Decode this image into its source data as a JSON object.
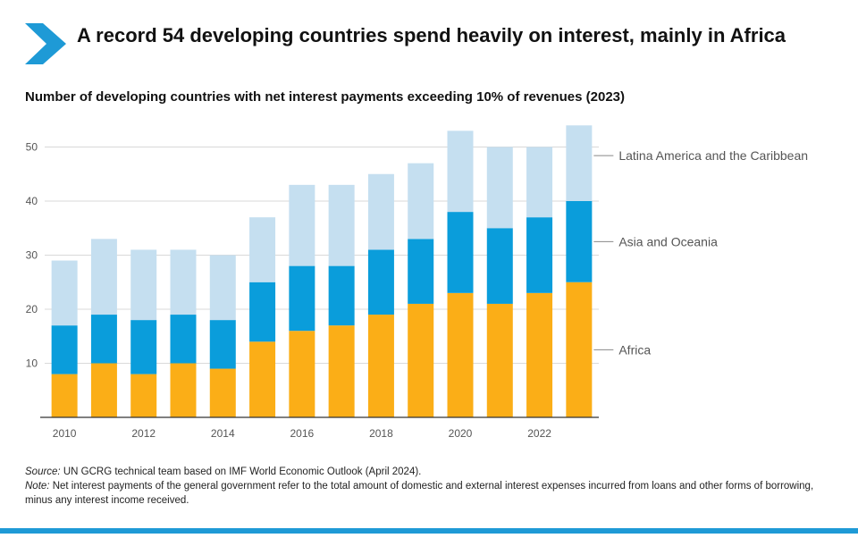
{
  "header": {
    "title": "A record 54 developing countries spend heavily on interest, mainly in Africa",
    "subtitle": "Number of developing countries with net interest payments exceeding 10% of revenues (2023)"
  },
  "footnote": {
    "source_label": "Source:",
    "source_text": "UN GCRG technical team based on IMF World Economic Outlook (April 2024).",
    "note_label": "Note:",
    "note_text": "Net interest payments of the general government refer to the total amount of domestic and external interest expenses incurred from loans and other forms of borrowing, minus any interest income received."
  },
  "colors": {
    "brand": "#1e9ad6",
    "africa": "#fbae17",
    "asia": "#0a9ddb",
    "latam": "#c5dff0",
    "grid": "#d9d9d9",
    "axis": "#333333",
    "label": "#555555"
  },
  "chart_data": {
    "type": "bar",
    "stacked": true,
    "title": "Number of developing countries with net interest payments exceeding 10% of revenues (2023)",
    "xlabel": "",
    "ylabel": "",
    "ylim": [
      0,
      55
    ],
    "yticks": [
      10,
      20,
      30,
      40,
      50
    ],
    "categories": [
      "2010",
      "2011",
      "2012",
      "2013",
      "2014",
      "2015",
      "2016",
      "2017",
      "2018",
      "2019",
      "2020",
      "2021",
      "2022",
      "2023"
    ],
    "xtick_labels": [
      "2010",
      "2012",
      "2014",
      "2016",
      "2018",
      "2020",
      "2022"
    ],
    "series": [
      {
        "name": "Africa",
        "color": "#fbae17",
        "values": [
          8,
          10,
          8,
          10,
          9,
          14,
          16,
          17,
          19,
          21,
          23,
          21,
          23,
          25
        ]
      },
      {
        "name": "Asia and Oceania",
        "color": "#0a9ddb",
        "values": [
          9,
          9,
          10,
          9,
          9,
          11,
          12,
          11,
          12,
          12,
          15,
          14,
          14,
          15
        ]
      },
      {
        "name": "Latina America and the Caribbean",
        "color": "#c5dff0",
        "values": [
          12,
          14,
          13,
          12,
          12,
          12,
          15,
          15,
          14,
          14,
          15,
          15,
          13,
          14
        ]
      }
    ],
    "legend": "right, labels placed beside the last bar"
  }
}
